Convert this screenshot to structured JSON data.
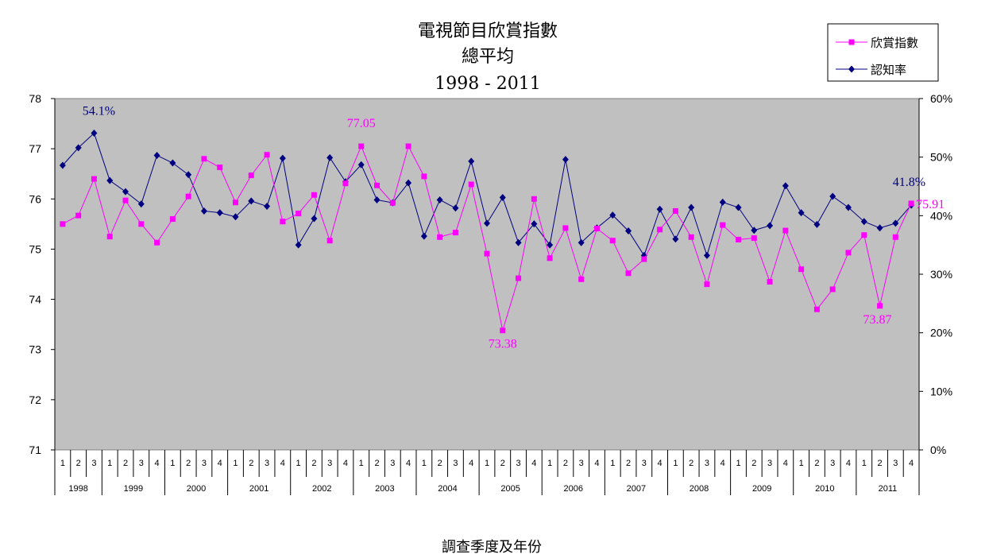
{
  "chart_data": {
    "type": "line",
    "title_lines": [
      "電視節目欣賞指數",
      "總平均",
      "1998  -  2011"
    ],
    "xlabel": "調查季度及年份",
    "quarter_labels": [
      "1",
      "2",
      "3",
      "4"
    ],
    "years": [
      "1998",
      "1999",
      "2000",
      "2001",
      "2002",
      "2003",
      "2004",
      "2005",
      "2006",
      "2007",
      "2008",
      "2009",
      "2010",
      "2011"
    ],
    "first_year_quarters": [
      "1",
      "2",
      "3"
    ],
    "y_left": {
      "min": 71,
      "max": 78,
      "ticks": [
        "71",
        "72",
        "73",
        "74",
        "75",
        "76",
        "77",
        "78"
      ]
    },
    "y_right": {
      "min": 0,
      "max": 60,
      "ticks": [
        "0%",
        "10%",
        "20%",
        "30%",
        "40%",
        "50%",
        "60%"
      ]
    },
    "grid": false,
    "plot_background": "#c0c0c0",
    "legend_position": "top-right",
    "series": [
      {
        "name": "欣賞指數",
        "axis": "left",
        "color": "#ff00ff",
        "marker": "square",
        "values": [
          75.5,
          75.67,
          76.4,
          75.25,
          75.97,
          75.5,
          75.13,
          75.6,
          76.05,
          76.8,
          76.63,
          75.93,
          76.47,
          76.88,
          75.55,
          75.71,
          76.08,
          75.17,
          76.31,
          77.05,
          76.27,
          75.92,
          77.05,
          76.45,
          75.24,
          75.33,
          76.29,
          74.91,
          73.38,
          74.42,
          76.0,
          74.82,
          75.42,
          74.4,
          75.41,
          75.17,
          74.52,
          74.8,
          75.39,
          75.76,
          75.24,
          74.3,
          75.48,
          75.19,
          75.22,
          74.35,
          75.37,
          74.6,
          73.8,
          74.2,
          74.93,
          75.28,
          73.87,
          75.24,
          75.91
        ]
      },
      {
        "name": "認知率",
        "axis": "right",
        "color": "#000080",
        "marker": "diamond",
        "values": [
          48.6,
          51.6,
          54.1,
          46.0,
          44.1,
          42.0,
          50.3,
          49.0,
          47.0,
          40.8,
          40.5,
          39.8,
          42.5,
          41.6,
          49.8,
          35.0,
          39.5,
          49.9,
          45.8,
          48.7,
          42.7,
          42.2,
          45.6,
          36.5,
          42.7,
          41.3,
          49.3,
          38.7,
          43.1,
          35.4,
          38.6,
          35.0,
          49.6,
          35.4,
          37.9,
          40.1,
          37.4,
          33.2,
          41.1,
          36.0,
          41.4,
          33.2,
          42.3,
          41.4,
          37.5,
          38.3,
          45.1,
          40.5,
          38.5,
          43.3,
          41.4,
          39.0,
          37.9,
          38.7,
          41.8
        ]
      }
    ],
    "annotations": [
      {
        "text": "54.1%",
        "series": 1,
        "index": 2
      },
      {
        "text": "77.05",
        "series": 0,
        "index": 19
      },
      {
        "text": "73.38",
        "series": 0,
        "index": 28
      },
      {
        "text": "73.87",
        "series": 0,
        "index": 52
      },
      {
        "text": "41.8%",
        "series": 1,
        "index": 54
      },
      {
        "text": "75.91",
        "series": 0,
        "index": 54
      }
    ]
  }
}
